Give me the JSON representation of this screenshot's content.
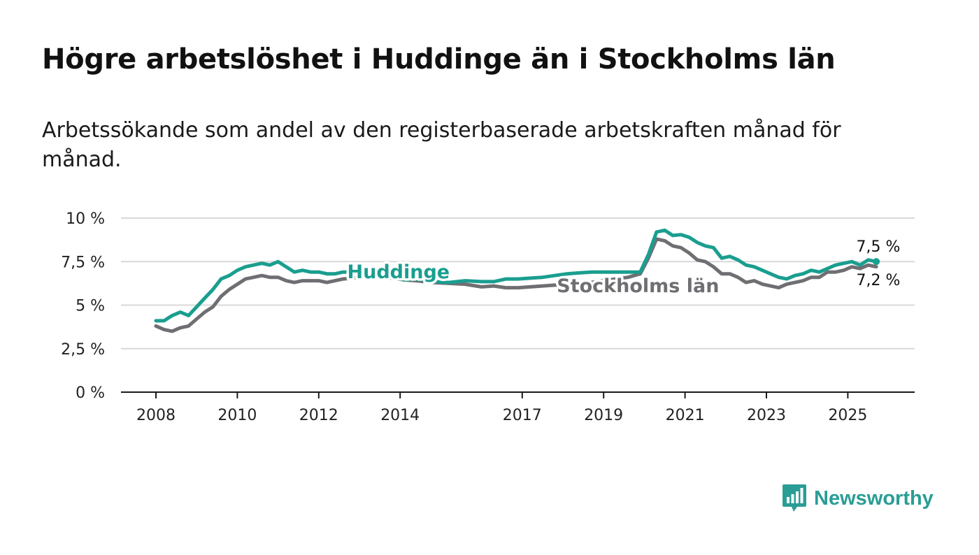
{
  "header": {
    "title": "Högre arbetslöshet i Huddinge än i Stockholms län",
    "subtitle": "Arbetssökande som andel av den registerbaserade arbetskraften månad för månad."
  },
  "brand": {
    "name": "Newsworthy",
    "icon": "bar-chart-bubble-icon"
  },
  "colors": {
    "huddinge": "#1a9e8f",
    "stockholm": "#6f6f73",
    "grid": "#d9d9d9",
    "axis": "#1a1a1a"
  },
  "chart_data": {
    "type": "line",
    "title": "Högre arbetslöshet i Huddinge än i Stockholms län",
    "subtitle": "Arbetssökande som andel av den registerbaserade arbetskraften månad för månad.",
    "xlabel": "",
    "ylabel": "",
    "ylim": [
      0,
      10
    ],
    "xlim": [
      2007.2,
      2026.5
    ],
    "grid": true,
    "y_ticks": [
      {
        "value": 0,
        "label": "0 %"
      },
      {
        "value": 2.5,
        "label": "2,5 %"
      },
      {
        "value": 5,
        "label": "5 %"
      },
      {
        "value": 7.5,
        "label": "7,5 %"
      },
      {
        "value": 10,
        "label": "10 %"
      }
    ],
    "x_ticks": [
      {
        "value": 2008,
        "label": "2008"
      },
      {
        "value": 2010,
        "label": "2010"
      },
      {
        "value": 2012,
        "label": "2012"
      },
      {
        "value": 2014,
        "label": "2014"
      },
      {
        "value": 2017,
        "label": "2017"
      },
      {
        "value": 2019,
        "label": "2019"
      },
      {
        "value": 2021,
        "label": "2021"
      },
      {
        "value": 2023,
        "label": "2023"
      },
      {
        "value": 2025,
        "label": "2025"
      }
    ],
    "series": [
      {
        "name": "Huddinge",
        "label": "Huddinge",
        "label_at": [
          2012.7,
          6.95
        ],
        "end_label": "7,5 %",
        "x": [
          2008.0,
          2008.2,
          2008.4,
          2008.6,
          2008.8,
          2009.0,
          2009.2,
          2009.4,
          2009.6,
          2009.8,
          2010.0,
          2010.2,
          2010.4,
          2010.6,
          2010.8,
          2011.0,
          2011.2,
          2011.4,
          2011.6,
          2011.8,
          2012.0,
          2012.2,
          2012.4,
          2012.6,
          2013.0,
          2013.4,
          2013.8,
          2014.1,
          2014.4,
          2014.8,
          2015.2,
          2015.6,
          2016.0,
          2016.3,
          2016.6,
          2016.9,
          2017.2,
          2017.5,
          2017.8,
          2018.1,
          2018.4,
          2018.7,
          2019.0,
          2019.3,
          2019.6,
          2019.9,
          2020.1,
          2020.3,
          2020.5,
          2020.7,
          2020.9,
          2021.1,
          2021.3,
          2021.5,
          2021.7,
          2021.9,
          2022.1,
          2022.3,
          2022.5,
          2022.7,
          2022.9,
          2023.1,
          2023.3,
          2023.5,
          2023.7,
          2023.9,
          2024.1,
          2024.3,
          2024.5,
          2024.7,
          2024.9,
          2025.1,
          2025.3,
          2025.5,
          2025.7
        ],
        "values": [
          4.1,
          4.1,
          4.4,
          4.6,
          4.4,
          4.9,
          5.4,
          5.9,
          6.5,
          6.7,
          7.0,
          7.2,
          7.3,
          7.4,
          7.3,
          7.5,
          7.2,
          6.9,
          7.0,
          6.9,
          6.9,
          6.8,
          6.8,
          6.9,
          6.9,
          6.8,
          6.7,
          6.45,
          6.5,
          6.35,
          6.3,
          6.4,
          6.35,
          6.35,
          6.5,
          6.5,
          6.55,
          6.6,
          6.7,
          6.8,
          6.85,
          6.9,
          6.9,
          6.9,
          6.9,
          6.9,
          7.9,
          9.2,
          9.3,
          9.0,
          9.05,
          8.9,
          8.6,
          8.4,
          8.3,
          7.7,
          7.8,
          7.6,
          7.3,
          7.2,
          7.0,
          6.8,
          6.6,
          6.5,
          6.7,
          6.8,
          7.0,
          6.9,
          7.1,
          7.3,
          7.4,
          7.5,
          7.3,
          7.6,
          7.5
        ]
      },
      {
        "name": "Stockholms län",
        "label": "Stockholms län",
        "label_at": [
          2017.85,
          6.15
        ],
        "end_label": "7,2 %",
        "x": [
          2008.0,
          2008.2,
          2008.4,
          2008.6,
          2008.8,
          2009.0,
          2009.2,
          2009.4,
          2009.6,
          2009.8,
          2010.0,
          2010.2,
          2010.4,
          2010.6,
          2010.8,
          2011.0,
          2011.2,
          2011.4,
          2011.6,
          2011.8,
          2012.0,
          2012.2,
          2012.4,
          2012.6,
          2013.0,
          2013.4,
          2013.8,
          2014.1,
          2014.4,
          2014.8,
          2015.2,
          2015.6,
          2016.0,
          2016.3,
          2016.6,
          2016.9,
          2017.2,
          2017.5,
          2017.8,
          2018.1,
          2018.4,
          2018.7,
          2019.0,
          2019.3,
          2019.6,
          2019.9,
          2020.1,
          2020.3,
          2020.5,
          2020.7,
          2020.9,
          2021.1,
          2021.3,
          2021.5,
          2021.7,
          2021.9,
          2022.1,
          2022.3,
          2022.5,
          2022.7,
          2022.9,
          2023.1,
          2023.3,
          2023.5,
          2023.7,
          2023.9,
          2024.1,
          2024.3,
          2024.5,
          2024.7,
          2024.9,
          2025.1,
          2025.3,
          2025.5,
          2025.7
        ],
        "values": [
          3.8,
          3.6,
          3.5,
          3.7,
          3.8,
          4.2,
          4.6,
          4.9,
          5.5,
          5.9,
          6.2,
          6.5,
          6.6,
          6.7,
          6.6,
          6.6,
          6.4,
          6.3,
          6.4,
          6.4,
          6.4,
          6.3,
          6.4,
          6.5,
          6.6,
          6.6,
          6.55,
          6.45,
          6.4,
          6.3,
          6.25,
          6.2,
          6.05,
          6.1,
          6.0,
          6.0,
          6.05,
          6.1,
          6.15,
          6.2,
          6.25,
          6.3,
          6.4,
          6.5,
          6.6,
          6.8,
          7.7,
          8.8,
          8.7,
          8.4,
          8.3,
          8.0,
          7.6,
          7.5,
          7.2,
          6.8,
          6.8,
          6.6,
          6.3,
          6.4,
          6.2,
          6.1,
          6.0,
          6.2,
          6.3,
          6.4,
          6.6,
          6.6,
          6.9,
          6.9,
          7.0,
          7.2,
          7.1,
          7.3,
          7.2
        ]
      }
    ]
  }
}
